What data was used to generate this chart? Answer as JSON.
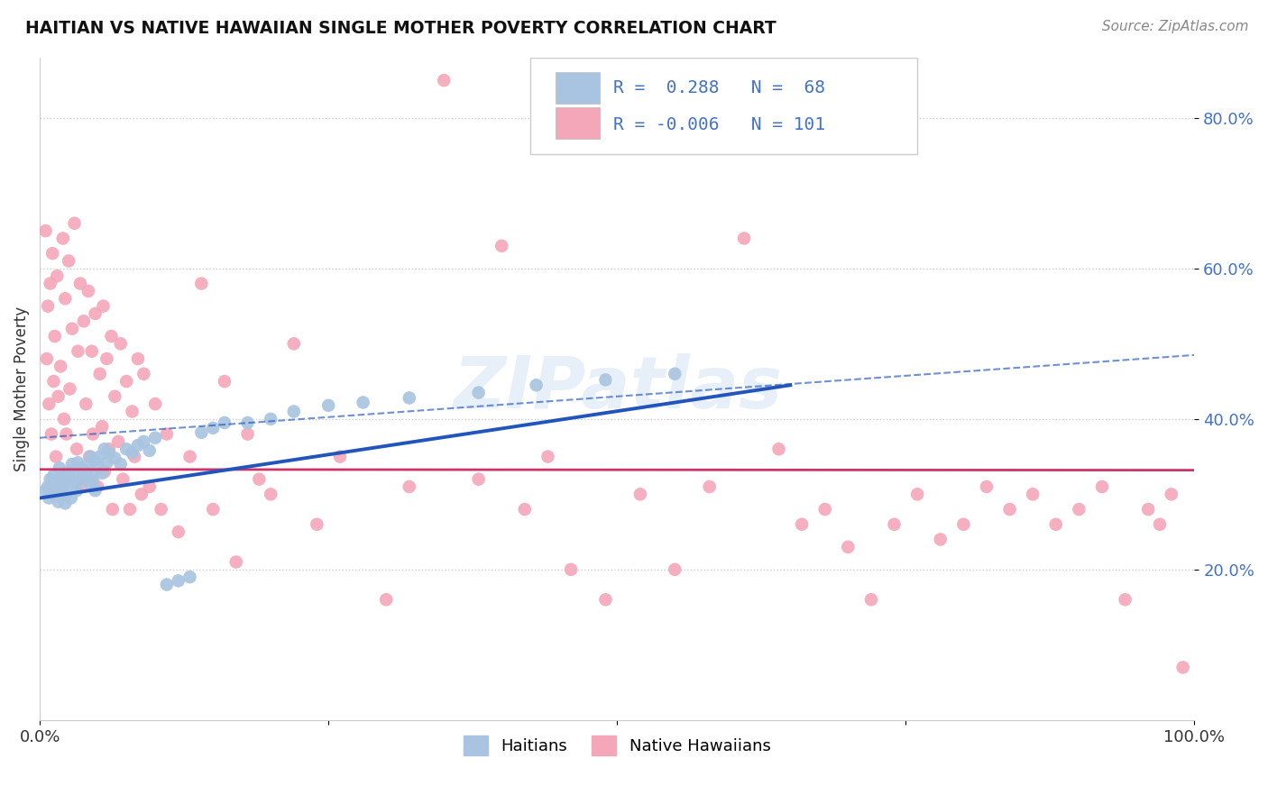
{
  "title": "HAITIAN VS NATIVE HAWAIIAN SINGLE MOTHER POVERTY CORRELATION CHART",
  "source": "Source: ZipAtlas.com",
  "ylabel": "Single Mother Poverty",
  "legend_label1": "Haitians",
  "legend_label2": "Native Hawaiians",
  "r1": 0.288,
  "n1": 68,
  "r2": -0.006,
  "n2": 101,
  "watermark": "ZIPatlas",
  "haitian_color": "#a8c4e0",
  "native_hawaiian_color": "#f4a7b9",
  "haitian_line_color": "#2255bb",
  "native_hawaiian_line_color": "#cc3366",
  "haitian_x": [
    0.005,
    0.007,
    0.008,
    0.009,
    0.01,
    0.011,
    0.012,
    0.013,
    0.014,
    0.015,
    0.016,
    0.017,
    0.018,
    0.019,
    0.02,
    0.021,
    0.022,
    0.023,
    0.024,
    0.025,
    0.026,
    0.027,
    0.028,
    0.03,
    0.031,
    0.032,
    0.033,
    0.035,
    0.036,
    0.038,
    0.04,
    0.042,
    0.043,
    0.044,
    0.045,
    0.046,
    0.047,
    0.048,
    0.05,
    0.052,
    0.054,
    0.056,
    0.058,
    0.06,
    0.065,
    0.07,
    0.075,
    0.08,
    0.085,
    0.09,
    0.095,
    0.1,
    0.11,
    0.12,
    0.13,
    0.14,
    0.15,
    0.16,
    0.18,
    0.2,
    0.22,
    0.25,
    0.28,
    0.32,
    0.38,
    0.43,
    0.49,
    0.55
  ],
  "haitian_y": [
    0.305,
    0.31,
    0.295,
    0.32,
    0.315,
    0.3,
    0.325,
    0.308,
    0.318,
    0.312,
    0.29,
    0.335,
    0.298,
    0.322,
    0.308,
    0.315,
    0.288,
    0.325,
    0.302,
    0.33,
    0.318,
    0.295,
    0.34,
    0.328,
    0.315,
    0.305,
    0.342,
    0.32,
    0.335,
    0.325,
    0.33,
    0.34,
    0.315,
    0.35,
    0.325,
    0.318,
    0.345,
    0.305,
    0.338,
    0.35,
    0.328,
    0.36,
    0.342,
    0.355,
    0.348,
    0.34,
    0.36,
    0.355,
    0.365,
    0.37,
    0.358,
    0.375,
    0.18,
    0.185,
    0.19,
    0.382,
    0.388,
    0.395,
    0.395,
    0.4,
    0.41,
    0.418,
    0.422,
    0.428,
    0.435,
    0.445,
    0.452,
    0.46
  ],
  "native_hawaiian_x": [
    0.005,
    0.006,
    0.007,
    0.008,
    0.009,
    0.01,
    0.011,
    0.012,
    0.013,
    0.014,
    0.015,
    0.016,
    0.018,
    0.02,
    0.021,
    0.022,
    0.023,
    0.025,
    0.026,
    0.028,
    0.03,
    0.032,
    0.033,
    0.035,
    0.036,
    0.038,
    0.04,
    0.042,
    0.043,
    0.045,
    0.046,
    0.048,
    0.05,
    0.052,
    0.054,
    0.055,
    0.056,
    0.058,
    0.06,
    0.062,
    0.063,
    0.065,
    0.068,
    0.07,
    0.072,
    0.075,
    0.078,
    0.08,
    0.082,
    0.085,
    0.088,
    0.09,
    0.095,
    0.1,
    0.105,
    0.11,
    0.12,
    0.13,
    0.14,
    0.15,
    0.16,
    0.17,
    0.18,
    0.19,
    0.2,
    0.22,
    0.24,
    0.26,
    0.3,
    0.32,
    0.35,
    0.38,
    0.4,
    0.42,
    0.44,
    0.46,
    0.49,
    0.52,
    0.55,
    0.58,
    0.61,
    0.64,
    0.66,
    0.68,
    0.7,
    0.72,
    0.74,
    0.76,
    0.78,
    0.8,
    0.82,
    0.84,
    0.86,
    0.88,
    0.9,
    0.92,
    0.94,
    0.96,
    0.97,
    0.98,
    0.99
  ],
  "native_hawaiian_y": [
    0.65,
    0.48,
    0.55,
    0.42,
    0.58,
    0.38,
    0.62,
    0.45,
    0.51,
    0.35,
    0.59,
    0.43,
    0.47,
    0.64,
    0.4,
    0.56,
    0.38,
    0.61,
    0.44,
    0.52,
    0.66,
    0.36,
    0.49,
    0.58,
    0.31,
    0.53,
    0.42,
    0.57,
    0.35,
    0.49,
    0.38,
    0.54,
    0.31,
    0.46,
    0.39,
    0.55,
    0.33,
    0.48,
    0.36,
    0.51,
    0.28,
    0.43,
    0.37,
    0.5,
    0.32,
    0.45,
    0.28,
    0.41,
    0.35,
    0.48,
    0.3,
    0.46,
    0.31,
    0.42,
    0.28,
    0.38,
    0.25,
    0.35,
    0.58,
    0.28,
    0.45,
    0.21,
    0.38,
    0.32,
    0.3,
    0.5,
    0.26,
    0.35,
    0.16,
    0.31,
    0.85,
    0.32,
    0.63,
    0.28,
    0.35,
    0.2,
    0.16,
    0.3,
    0.2,
    0.31,
    0.64,
    0.36,
    0.26,
    0.28,
    0.23,
    0.16,
    0.26,
    0.3,
    0.24,
    0.26,
    0.31,
    0.28,
    0.3,
    0.26,
    0.28,
    0.31,
    0.16,
    0.28,
    0.26,
    0.3,
    0.07
  ],
  "blue_line_x0": 0.0,
  "blue_line_y0": 0.295,
  "blue_line_x1": 0.65,
  "blue_line_y1": 0.445,
  "pink_line_x0": 0.0,
  "pink_line_y0": 0.333,
  "pink_line_x1": 1.0,
  "pink_line_y1": 0.332,
  "dash_line_x0": 0.0,
  "dash_line_y0": 0.375,
  "dash_line_x1": 1.0,
  "dash_line_y1": 0.485,
  "xlim": [
    0.0,
    1.0
  ],
  "ylim": [
    0.0,
    0.88
  ],
  "yticks": [
    0.2,
    0.4,
    0.6,
    0.8
  ],
  "xtick_labels_show": [
    "0.0%",
    "100.0%"
  ],
  "xtick_positions_show": [
    0.0,
    1.0
  ]
}
